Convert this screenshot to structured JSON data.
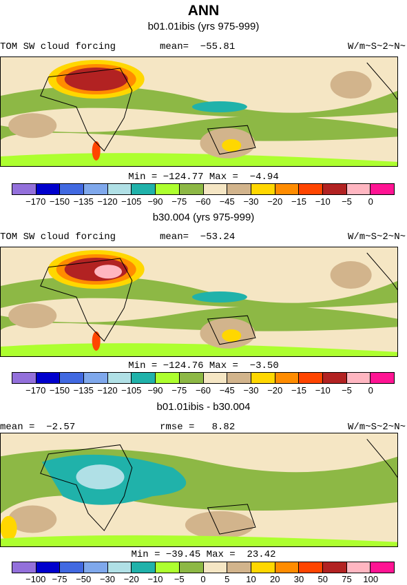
{
  "title": "ANN",
  "panels": [
    {
      "subtitle": "b01.01ibis (yrs 975-999)",
      "left_label": "TOM SW cloud forcing",
      "center_label": "mean=  −55.81",
      "right_label": "W/m~S~2~N~",
      "minmax": "Min = −124.77 Max =  −4.94",
      "colorbar_labels": [
        "−170",
        "−150",
        "−135",
        "−120",
        "−105",
        "−90",
        "−75",
        "−60",
        "−45",
        "−30",
        "−20",
        "−15",
        "−10",
        "−5",
        "0"
      ]
    },
    {
      "subtitle": "b30.004 (yrs 975-999)",
      "left_label": "TOM SW cloud forcing",
      "center_label": "mean=  −53.24",
      "right_label": "W/m~S~2~N~",
      "minmax": "Min = −124.76 Max =  −3.50",
      "colorbar_labels": [
        "−170",
        "−150",
        "−135",
        "−120",
        "−105",
        "−90",
        "−75",
        "−60",
        "−45",
        "−30",
        "−20",
        "−15",
        "−10",
        "−5",
        "0"
      ]
    },
    {
      "subtitle": "b01.01ibis - b30.004",
      "left_label": "mean =  −2.57",
      "center_label": "rmse =   8.82",
      "right_label": "W/m~S~2~N~",
      "minmax": "Min = −39.45 Max =  23.42",
      "colorbar_labels": [
        "−100",
        "−75",
        "−50",
        "−30",
        "−20",
        "−10",
        "−5",
        "0",
        "5",
        "10",
        "20",
        "30",
        "50",
        "75",
        "100"
      ]
    }
  ],
  "colorbar_colors": [
    "#9370DB",
    "#0000CD",
    "#4169E1",
    "#7FA8EC",
    "#B0E0E6",
    "#20B2AA",
    "#ADFF2F",
    "#8DB845",
    "#F5E6C4",
    "#D2B48C",
    "#FFD700",
    "#FF8C00",
    "#FF4500",
    "#B22222",
    "#FFB6C1",
    "#FF1493"
  ]
}
